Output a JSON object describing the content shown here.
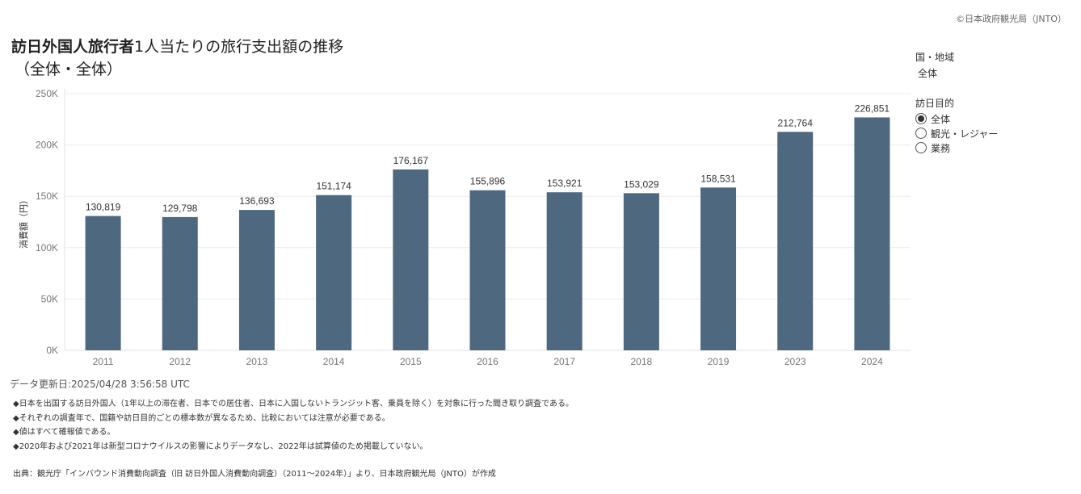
{
  "copyright": "©日本政府観光局（JNTO）",
  "title": {
    "main_bold": "訪日外国人旅行者",
    "main_rest": "1人当たりの旅行支出額の推移",
    "subtitle": "（全体・全体）"
  },
  "filters": {
    "region_label": "国・地域",
    "region_value": "全体",
    "purpose_label": "訪日目的",
    "purpose_options": [
      {
        "label": "全体",
        "selected": true
      },
      {
        "label": "観光・レジャー",
        "selected": false
      },
      {
        "label": "業務",
        "selected": false
      }
    ]
  },
  "chart_data": {
    "type": "bar",
    "categories": [
      "2011",
      "2012",
      "2013",
      "2014",
      "2015",
      "2016",
      "2017",
      "2018",
      "2019",
      "2023",
      "2024"
    ],
    "values": [
      130819,
      129798,
      136693,
      151174,
      176167,
      155896,
      153921,
      153029,
      158531,
      212764,
      226851
    ],
    "data_labels": [
      "130,819",
      "129,798",
      "136,693",
      "151,174",
      "176,167",
      "155,896",
      "153,921",
      "153,029",
      "158,531",
      "212,764",
      "226,851"
    ],
    "ylabel": "消費額（円）",
    "ylim": [
      0,
      250000
    ],
    "yticks": [
      0,
      50000,
      100000,
      150000,
      200000,
      250000
    ],
    "ytick_labels": [
      "0K",
      "50K",
      "100K",
      "150K",
      "200K",
      "250K"
    ],
    "bar_color": "#4e6880",
    "grid": true
  },
  "updated": "データ更新日:2025/04/28 3:56:58 UTC",
  "notes": [
    "◆日本を出国する訪日外国人（1年以上の滞在者、日本での居住者、日本に入国しないトランジット客、乗員を除く）を対象に行った聞き取り調査である。",
    "◆それぞれの調査年で、国籍や訪日目的ごとの標本数が異なるため、比較においては注意が必要である。",
    "◆値はすべて確報値である。",
    "◆2020年および2021年は新型コロナウイルスの影響によりデータなし、2022年は試算値のため掲載していない。"
  ],
  "source": "出典：観光庁「インバウンド消費動向調査（旧 訪日外国人消費動向調査）（2011～2024年）」より、日本政府観光局（JNTO）が作成"
}
